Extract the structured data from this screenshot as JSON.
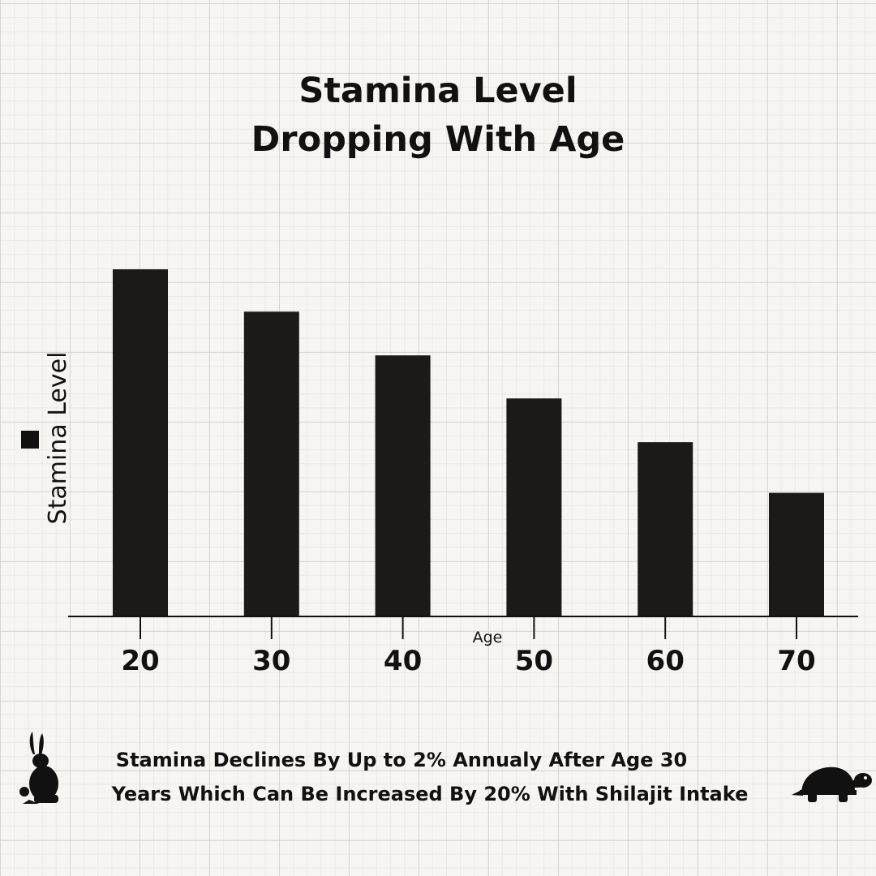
{
  "chart_data": {
    "type": "bar",
    "title": [
      "Stamina Level",
      "Dropping With Age"
    ],
    "xlabel": "Age",
    "ylabel": "Stamina Level",
    "categories": [
      "20",
      "30",
      "40",
      "50",
      "60",
      "70"
    ],
    "values": [
      100,
      87.8,
      75.2,
      62.8,
      50.2,
      35.6
    ],
    "ylim": [
      0,
      100
    ],
    "grid": false,
    "legend": "left",
    "bar_color": "#1b1a18"
  },
  "footer": {
    "line1": "Stamina Declines By Up to 2% Annualy After Age 30",
    "line2": "Years Which Can Be Increased By 20%  With Shilajit Intake"
  },
  "icons": [
    "rabbit-icon",
    "turtle-icon"
  ]
}
